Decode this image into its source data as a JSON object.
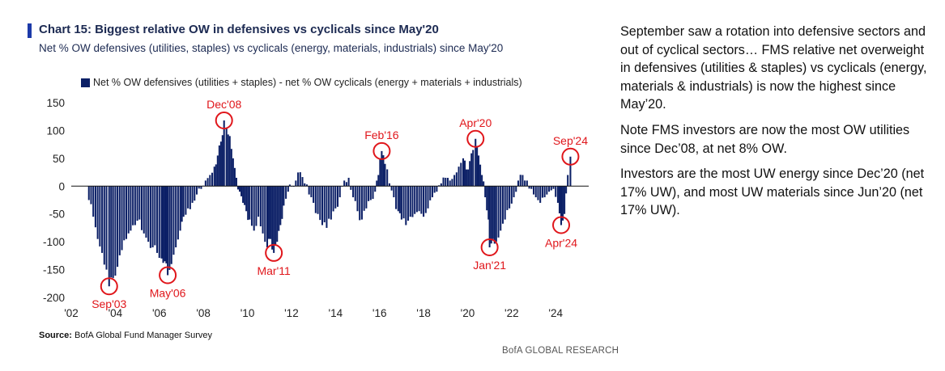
{
  "header": {
    "title": "Chart 15: Biggest relative OW in defensives vs cyclicals since May'20",
    "subtitle": "Net % OW defensives (utilities, staples) vs cyclicals (energy, materials, industrials) since May'20"
  },
  "colors": {
    "bar": "#0b1f66",
    "accent": "#1c3aa9",
    "annotation": "#e0161b"
  },
  "chart_data": {
    "type": "bar",
    "title": "Chart 15: Biggest relative OW in defensives vs cyclicals since May'20",
    "subtitle": "Net % OW defensives (utilities, staples) vs cyclicals (energy, materials, industrials) since May'20",
    "ylim": [
      -200,
      150
    ],
    "yticks": [
      150,
      100,
      50,
      0,
      -50,
      -100,
      -150,
      -200
    ],
    "xlim": [
      2002,
      2025.5
    ],
    "xtick_labels": [
      "'02",
      "'04",
      "'06",
      "'08",
      "'10",
      "'12",
      "'14",
      "'16",
      "'18",
      "'20",
      "'22",
      "'24"
    ],
    "legend": {
      "position": "top",
      "entries": [
        "Net % OW defensives (utilities + staples) - net % OW cyclicals (energy + materials + industrials)"
      ]
    },
    "series": [
      {
        "name": "Net % OW defensives (utilities + staples) - net % OW cyclicals (energy + materials + industrials)",
        "points": [
          [
            2002.8,
            -25
          ],
          [
            2003.0,
            -55
          ],
          [
            2003.2,
            -95
          ],
          [
            2003.4,
            -120
          ],
          [
            2003.6,
            -150
          ],
          [
            2003.72,
            -180
          ],
          [
            2003.9,
            -165
          ],
          [
            2004.1,
            -145
          ],
          [
            2004.3,
            -115
          ],
          [
            2004.5,
            -95
          ],
          [
            2004.7,
            -80
          ],
          [
            2004.9,
            -70
          ],
          [
            2005.1,
            -60
          ],
          [
            2005.3,
            -85
          ],
          [
            2005.5,
            -100
          ],
          [
            2005.7,
            -110
          ],
          [
            2005.9,
            -120
          ],
          [
            2006.1,
            -130
          ],
          [
            2006.25,
            -135
          ],
          [
            2006.38,
            -160
          ],
          [
            2006.55,
            -140
          ],
          [
            2006.75,
            -110
          ],
          [
            2006.95,
            -80
          ],
          [
            2007.1,
            -55
          ],
          [
            2007.3,
            -40
          ],
          [
            2007.5,
            -30
          ],
          [
            2007.7,
            -15
          ],
          [
            2007.9,
            -5
          ],
          [
            2008.1,
            10
          ],
          [
            2008.3,
            20
          ],
          [
            2008.5,
            35
          ],
          [
            2008.65,
            55
          ],
          [
            2008.8,
            80
          ],
          [
            2008.94,
            118
          ],
          [
            2009.05,
            105
          ],
          [
            2009.2,
            90
          ],
          [
            2009.35,
            50
          ],
          [
            2009.5,
            15
          ],
          [
            2009.65,
            -10
          ],
          [
            2009.8,
            -30
          ],
          [
            2009.95,
            -45
          ],
          [
            2010.1,
            -60
          ],
          [
            2010.3,
            -80
          ],
          [
            2010.5,
            -55
          ],
          [
            2010.7,
            -85
          ],
          [
            2010.9,
            -110
          ],
          [
            2011.05,
            -95
          ],
          [
            2011.2,
            -120
          ],
          [
            2011.35,
            -100
          ],
          [
            2011.5,
            -70
          ],
          [
            2011.65,
            -35
          ],
          [
            2011.85,
            -10
          ],
          [
            2012.0,
            0
          ],
          [
            2012.2,
            10
          ],
          [
            2012.4,
            25
          ],
          [
            2012.6,
            5
          ],
          [
            2012.8,
            -15
          ],
          [
            2013.0,
            -30
          ],
          [
            2013.2,
            -50
          ],
          [
            2013.4,
            -70
          ],
          [
            2013.6,
            -75
          ],
          [
            2013.8,
            -60
          ],
          [
            2014.0,
            -40
          ],
          [
            2014.2,
            -20
          ],
          [
            2014.4,
            10
          ],
          [
            2014.6,
            15
          ],
          [
            2014.8,
            -20
          ],
          [
            2015.0,
            -45
          ],
          [
            2015.2,
            -60
          ],
          [
            2015.4,
            -40
          ],
          [
            2015.6,
            -25
          ],
          [
            2015.8,
            -10
          ],
          [
            2015.95,
            20
          ],
          [
            2016.1,
            63
          ],
          [
            2016.25,
            40
          ],
          [
            2016.45,
            5
          ],
          [
            2016.65,
            -20
          ],
          [
            2016.85,
            -45
          ],
          [
            2017.0,
            -60
          ],
          [
            2017.2,
            -70
          ],
          [
            2017.4,
            -55
          ],
          [
            2017.6,
            -50
          ],
          [
            2017.8,
            -45
          ],
          [
            2018.0,
            -55
          ],
          [
            2018.2,
            -40
          ],
          [
            2018.4,
            -20
          ],
          [
            2018.6,
            -10
          ],
          [
            2018.8,
            5
          ],
          [
            2019.0,
            15
          ],
          [
            2019.2,
            10
          ],
          [
            2019.4,
            20
          ],
          [
            2019.6,
            35
          ],
          [
            2019.8,
            50
          ],
          [
            2019.95,
            30
          ],
          [
            2020.1,
            45
          ],
          [
            2020.25,
            65
          ],
          [
            2020.36,
            85
          ],
          [
            2020.5,
            55
          ],
          [
            2020.65,
            20
          ],
          [
            2020.8,
            -20
          ],
          [
            2020.95,
            -60
          ],
          [
            2021.0,
            -110
          ],
          [
            2021.15,
            -95
          ],
          [
            2021.3,
            -100
          ],
          [
            2021.5,
            -80
          ],
          [
            2021.7,
            -60
          ],
          [
            2021.9,
            -40
          ],
          [
            2022.1,
            -20
          ],
          [
            2022.3,
            10
          ],
          [
            2022.5,
            20
          ],
          [
            2022.7,
            10
          ],
          [
            2022.9,
            -5
          ],
          [
            2023.1,
            -20
          ],
          [
            2023.3,
            -30
          ],
          [
            2023.5,
            -20
          ],
          [
            2023.7,
            -10
          ],
          [
            2023.9,
            -5
          ],
          [
            2024.1,
            -30
          ],
          [
            2024.25,
            -70
          ],
          [
            2024.4,
            -50
          ],
          [
            2024.55,
            20
          ],
          [
            2024.67,
            53
          ]
        ]
      }
    ],
    "annotations": [
      {
        "label": "Sep'03",
        "x": 2003.72,
        "y": -180
      },
      {
        "label": "May'06",
        "x": 2006.38,
        "y": -160
      },
      {
        "label": "Dec'08",
        "x": 2008.94,
        "y": 118
      },
      {
        "label": "Mar'11",
        "x": 2011.2,
        "y": -120
      },
      {
        "label": "Feb'16",
        "x": 2016.1,
        "y": 63
      },
      {
        "label": "Apr'20",
        "x": 2020.36,
        "y": 85
      },
      {
        "label": "Jan'21",
        "x": 2021.0,
        "y": -110
      },
      {
        "label": "Apr'24",
        "x": 2024.25,
        "y": -70
      },
      {
        "label": "Sep'24",
        "x": 2024.67,
        "y": 53
      }
    ]
  },
  "source": {
    "label": "Source:",
    "text": "BofA Global Fund Manager Survey"
  },
  "brand": "BofA GLOBAL RESEARCH",
  "commentary": {
    "p1": "September saw a rotation into defensive sectors and out of cyclical sectors… FMS relative net overweight in defensives (utilities & staples) vs cyclicals (energy, materials & industrials) is now the highest since May’20.",
    "p2": "Note FMS investors are now the most OW utilities since Dec’08, at net 8% OW.",
    "p3": "Investors are the most UW energy since Dec’20 (net 17% UW), and most UW materials since Jun’20 (net 17% UW)."
  }
}
